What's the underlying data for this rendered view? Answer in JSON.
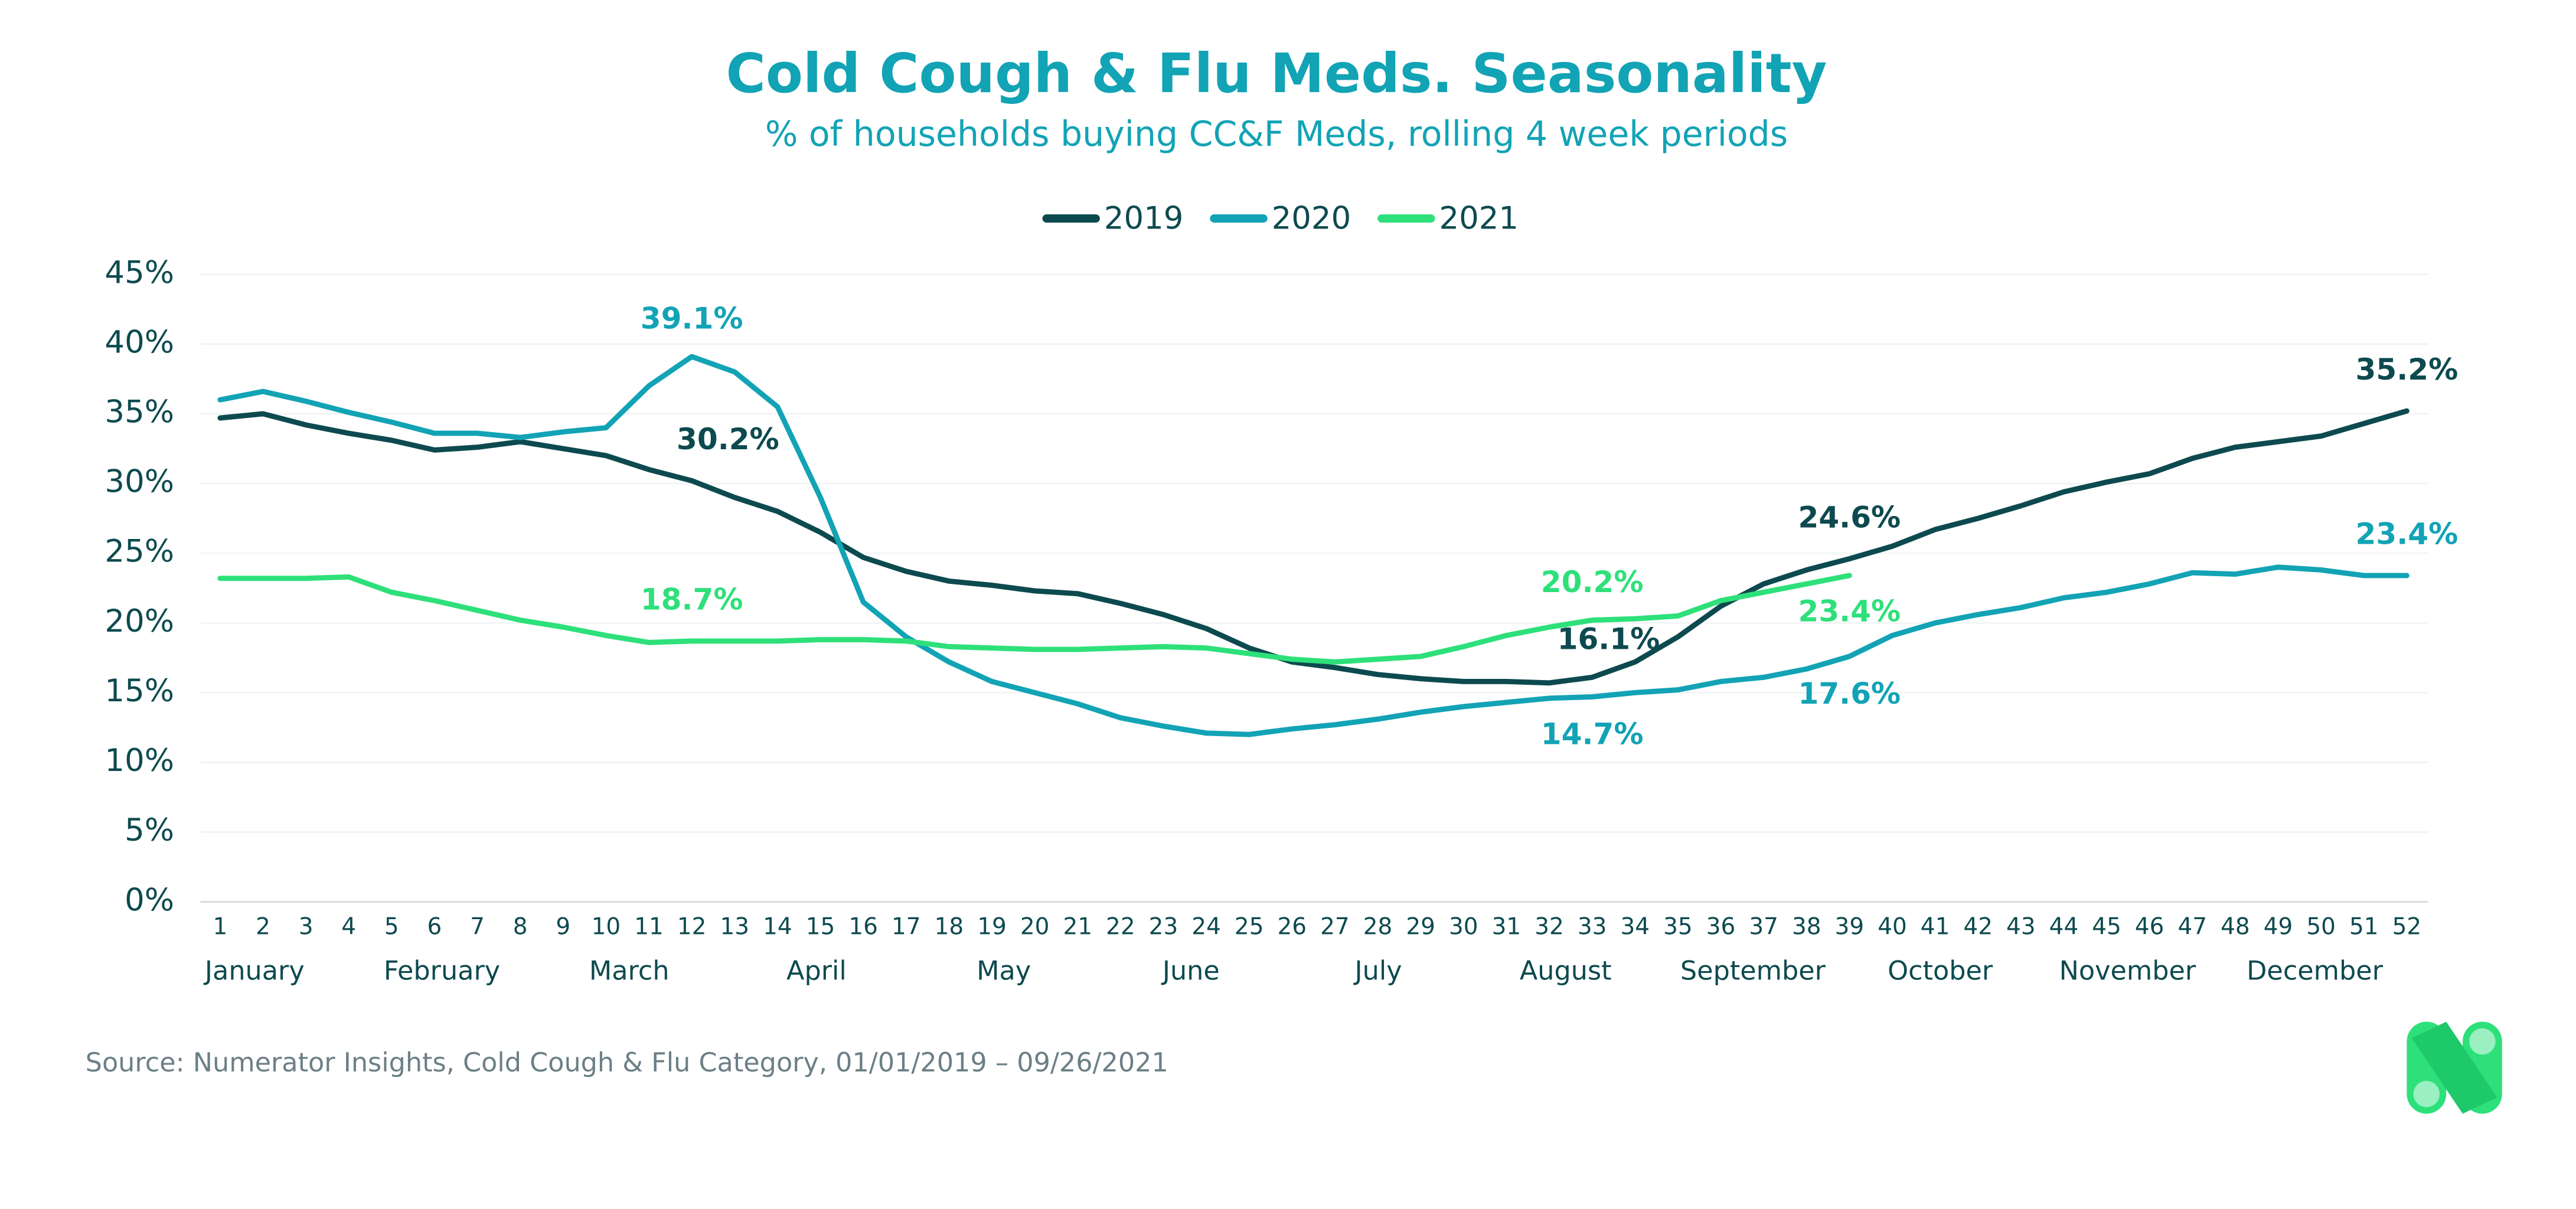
{
  "chart_data": {
    "type": "line",
    "title": "Cold Cough & Flu Meds. Seasonality",
    "subtitle": "% of households buying CC&F Meds, rolling 4 week periods",
    "source": "Source: Numerator Insights, Cold Cough & Flu Category, 01/01/2019 – 09/26/2021",
    "x": [
      1,
      2,
      3,
      4,
      5,
      6,
      7,
      8,
      9,
      10,
      11,
      12,
      13,
      14,
      15,
      16,
      17,
      18,
      19,
      20,
      21,
      22,
      23,
      24,
      25,
      26,
      27,
      28,
      29,
      30,
      31,
      32,
      33,
      34,
      35,
      36,
      37,
      38,
      39,
      40,
      41,
      42,
      43,
      44,
      45,
      46,
      47,
      48,
      49,
      50,
      51,
      52
    ],
    "xlim": [
      1,
      52
    ],
    "months": [
      "January",
      "February",
      "March",
      "April",
      "May",
      "June",
      "July",
      "August",
      "September",
      "October",
      "November",
      "December"
    ],
    "ylim": [
      0,
      45
    ],
    "yticks": [
      {
        "value": 0,
        "label": "0%"
      },
      {
        "value": 5,
        "label": "5%"
      },
      {
        "value": 10,
        "label": "10%"
      },
      {
        "value": 15,
        "label": "15%"
      },
      {
        "value": 20,
        "label": "20%"
      },
      {
        "value": 25,
        "label": "25%"
      },
      {
        "value": 30,
        "label": "30%"
      },
      {
        "value": 35,
        "label": "35%"
      },
      {
        "value": 40,
        "label": "40%"
      },
      {
        "value": 45,
        "label": "45%"
      }
    ],
    "grid": true,
    "legend": "top",
    "series": [
      {
        "name": "2019",
        "color": "#0d4a4f",
        "values": [
          34.7,
          35.0,
          34.2,
          33.6,
          33.1,
          32.4,
          32.6,
          33.0,
          32.5,
          32.0,
          31.0,
          30.2,
          29.0,
          28.0,
          26.5,
          24.7,
          23.7,
          23.0,
          22.7,
          22.3,
          22.1,
          21.4,
          20.6,
          19.6,
          18.2,
          17.2,
          16.8,
          16.3,
          16.0,
          15.8,
          15.8,
          15.7,
          16.1,
          17.2,
          19.0,
          21.2,
          22.8,
          23.8,
          24.6,
          25.5,
          26.7,
          27.5,
          28.4,
          29.4,
          30.1,
          30.7,
          31.8,
          32.6,
          33.0,
          33.4,
          34.3,
          35.2
        ],
        "value_labels": [
          null,
          null,
          null,
          null,
          null,
          null,
          null,
          null,
          null,
          null,
          null,
          "30.2%",
          null,
          null,
          null,
          null,
          null,
          null,
          null,
          null,
          null,
          null,
          null,
          null,
          null,
          null,
          null,
          null,
          null,
          null,
          null,
          null,
          "16.1%",
          null,
          null,
          null,
          null,
          null,
          "24.6%",
          null,
          null,
          null,
          null,
          null,
          null,
          null,
          null,
          null,
          null,
          null,
          null,
          "35.2%"
        ]
      },
      {
        "name": "2020",
        "color": "#12a3b5",
        "values": [
          36.0,
          36.6,
          35.9,
          35.1,
          34.4,
          33.6,
          33.6,
          33.3,
          33.7,
          34.0,
          37.0,
          39.1,
          38.0,
          35.5,
          29.0,
          21.5,
          19.0,
          17.2,
          15.8,
          15.0,
          14.2,
          13.2,
          12.6,
          12.1,
          12.0,
          12.4,
          12.7,
          13.1,
          13.6,
          14.0,
          14.3,
          14.6,
          14.7,
          15.0,
          15.2,
          15.8,
          16.1,
          16.7,
          17.6,
          19.1,
          20.0,
          20.6,
          21.1,
          21.8,
          22.2,
          22.8,
          23.6,
          23.5,
          24.0,
          23.8,
          23.4,
          23.4
        ],
        "value_labels": [
          null,
          null,
          null,
          null,
          null,
          null,
          null,
          null,
          null,
          null,
          null,
          "39.1%",
          null,
          null,
          null,
          null,
          null,
          null,
          null,
          null,
          null,
          null,
          null,
          null,
          null,
          null,
          null,
          null,
          null,
          null,
          null,
          null,
          "14.7%",
          null,
          null,
          null,
          null,
          null,
          "17.6%",
          null,
          null,
          null,
          null,
          null,
          null,
          null,
          null,
          null,
          null,
          null,
          null,
          "23.4%"
        ]
      },
      {
        "name": "2021",
        "color": "#2ee07a",
        "values": [
          23.2,
          23.2,
          23.2,
          23.3,
          22.2,
          21.6,
          20.9,
          20.2,
          19.7,
          19.1,
          18.6,
          18.7,
          18.7,
          18.7,
          18.8,
          18.8,
          18.7,
          18.3,
          18.2,
          18.1,
          18.1,
          18.2,
          18.3,
          18.2,
          17.8,
          17.4,
          17.2,
          17.4,
          17.6,
          18.3,
          19.1,
          19.7,
          20.2,
          20.3,
          20.5,
          21.6,
          22.2,
          22.8,
          23.4,
          null,
          null,
          null,
          null,
          null,
          null,
          null,
          null,
          null,
          null,
          null,
          null,
          null
        ],
        "value_labels": [
          null,
          null,
          null,
          null,
          null,
          null,
          null,
          null,
          null,
          null,
          null,
          "18.7%",
          null,
          null,
          null,
          null,
          null,
          null,
          null,
          null,
          null,
          null,
          null,
          null,
          null,
          null,
          null,
          null,
          null,
          null,
          null,
          null,
          "20.2%",
          null,
          null,
          null,
          null,
          null,
          "23.4%",
          null,
          null,
          null,
          null,
          null,
          null,
          null,
          null,
          null,
          null,
          null,
          null,
          null
        ]
      }
    ]
  }
}
